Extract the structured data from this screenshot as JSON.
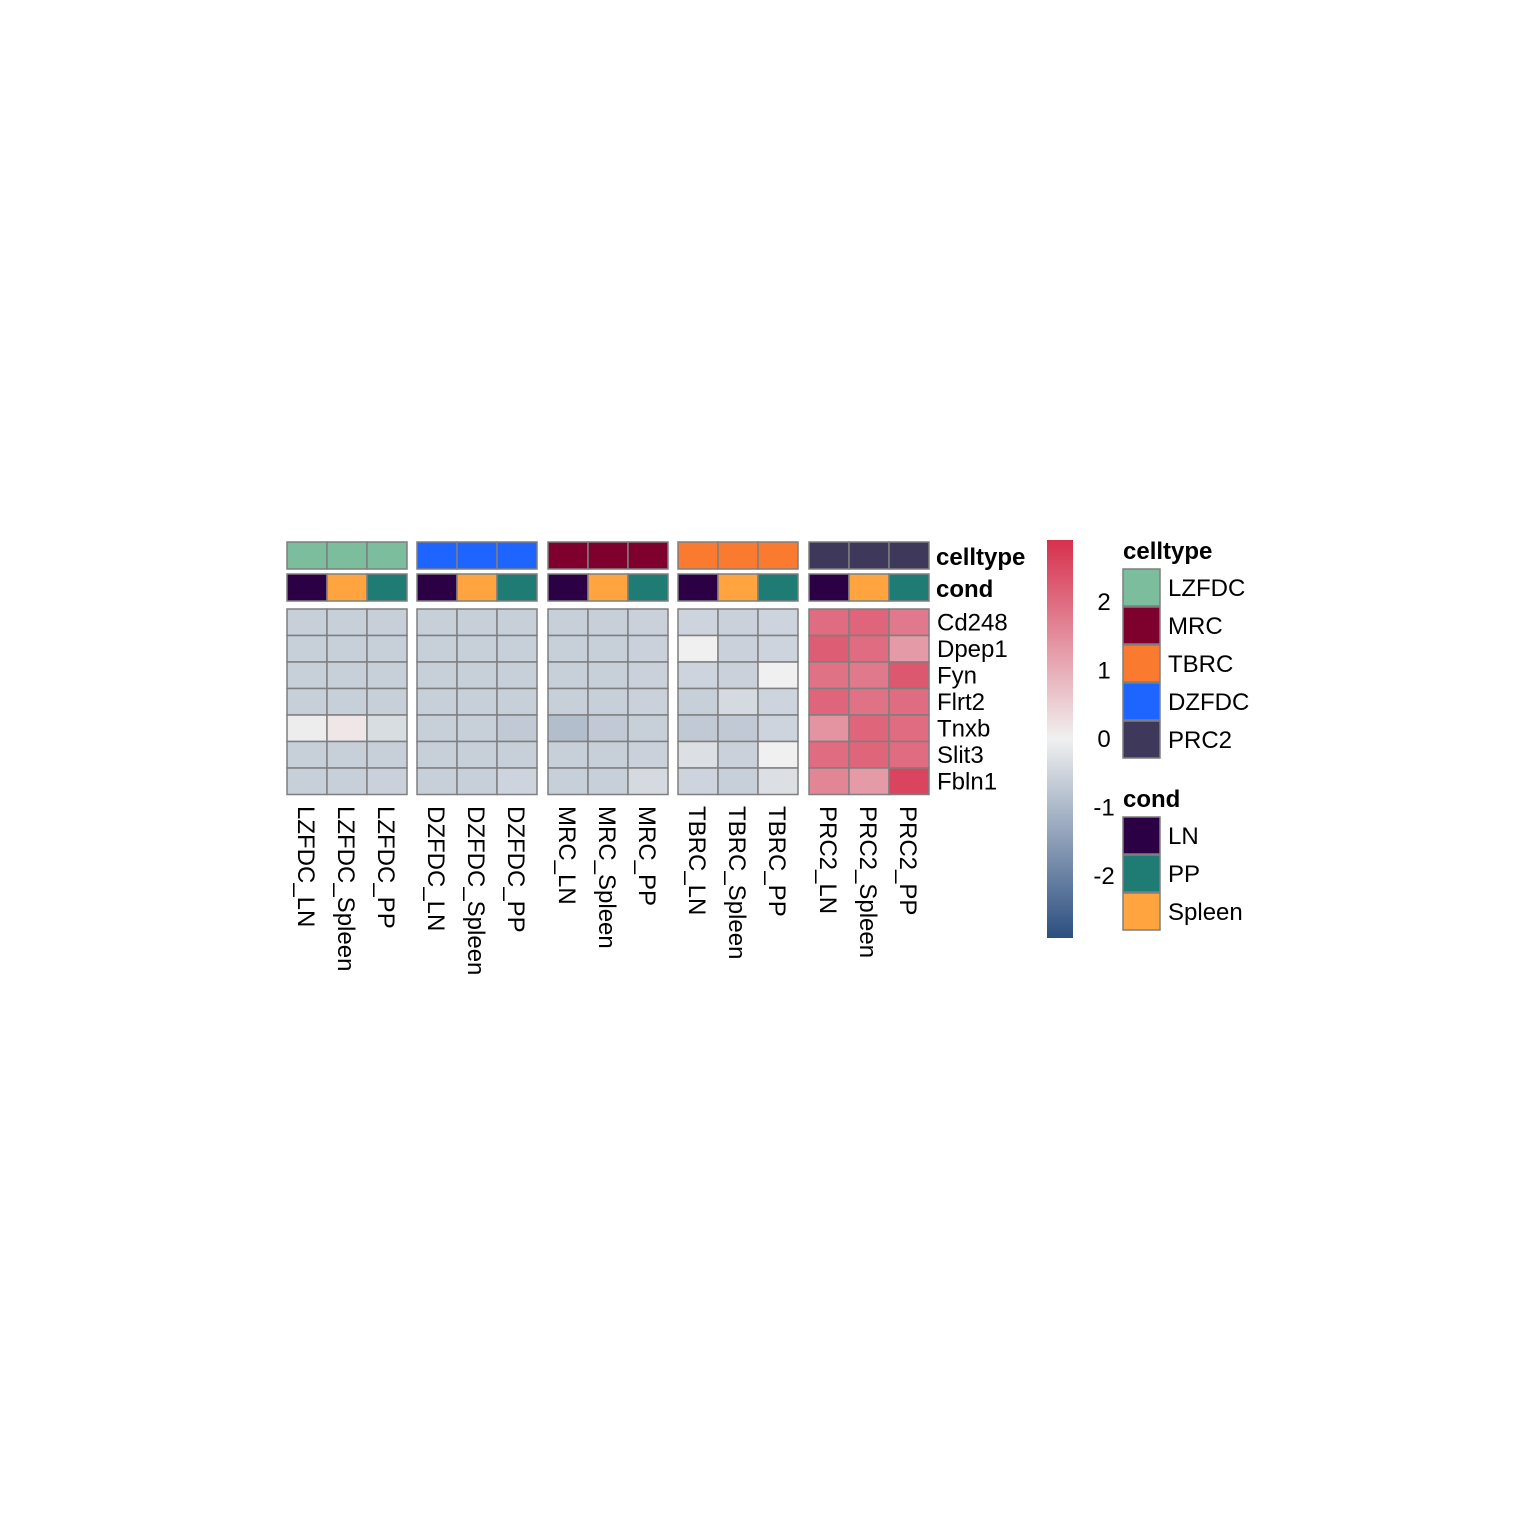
{
  "chart_data": {
    "type": "heatmap",
    "columns": [
      "LZFDC_LN",
      "LZFDC_Spleen",
      "LZFDC_PP",
      "DZFDC_LN",
      "DZFDC_Spleen",
      "DZFDC_PP",
      "MRC_LN",
      "MRC_Spleen",
      "MRC_PP",
      "TBRC_LN",
      "TBRC_Spleen",
      "TBRC_PP",
      "PRC2_LN",
      "PRC2_Spleen",
      "PRC2_PP"
    ],
    "column_groups": [
      {
        "celltype": "LZFDC",
        "columns": [
          "LZFDC_LN",
          "LZFDC_Spleen",
          "LZFDC_PP"
        ]
      },
      {
        "celltype": "DZFDC",
        "columns": [
          "DZFDC_LN",
          "DZFDC_Spleen",
          "DZFDC_PP"
        ]
      },
      {
        "celltype": "MRC",
        "columns": [
          "MRC_LN",
          "MRC_Spleen",
          "MRC_PP"
        ]
      },
      {
        "celltype": "TBRC",
        "columns": [
          "TBRC_LN",
          "TBRC_Spleen",
          "TBRC_PP"
        ]
      },
      {
        "celltype": "PRC2",
        "columns": [
          "PRC2_LN",
          "PRC2_Spleen",
          "PRC2_PP"
        ]
      }
    ],
    "annotations": {
      "celltype": [
        "LZFDC",
        "LZFDC",
        "LZFDC",
        "DZFDC",
        "DZFDC",
        "DZFDC",
        "MRC",
        "MRC",
        "MRC",
        "TBRC",
        "TBRC",
        "TBRC",
        "PRC2",
        "PRC2",
        "PRC2"
      ],
      "cond": [
        "LN",
        "Spleen",
        "PP",
        "LN",
        "Spleen",
        "PP",
        "LN",
        "Spleen",
        "PP",
        "LN",
        "Spleen",
        "PP",
        "LN",
        "Spleen",
        "PP"
      ]
    },
    "annotation_labels": [
      "celltype",
      "cond"
    ],
    "rows": [
      "Cd248",
      "Dpep1",
      "Fyn",
      "Flrt2",
      "Tnxb",
      "Slit3",
      "Fbln1"
    ],
    "values": [
      [
        -0.6,
        -0.6,
        -0.6,
        -0.6,
        -0.6,
        -0.6,
        -0.6,
        -0.6,
        -0.55,
        -0.5,
        -0.55,
        -0.5,
        2.0,
        2.1,
        1.8
      ],
      [
        -0.6,
        -0.6,
        -0.6,
        -0.6,
        -0.6,
        -0.6,
        -0.6,
        -0.6,
        -0.55,
        0.0,
        -0.55,
        -0.5,
        2.2,
        2.0,
        1.3
      ],
      [
        -0.6,
        -0.6,
        -0.6,
        -0.6,
        -0.6,
        -0.6,
        -0.6,
        -0.6,
        -0.55,
        -0.5,
        -0.55,
        0.0,
        1.9,
        1.8,
        2.3
      ],
      [
        -0.6,
        -0.6,
        -0.6,
        -0.6,
        -0.6,
        -0.6,
        -0.6,
        -0.6,
        -0.55,
        -0.6,
        -0.4,
        -0.5,
        2.1,
        1.9,
        2.0
      ],
      [
        -0.05,
        0.15,
        -0.35,
        -0.6,
        -0.6,
        -0.7,
        -0.9,
        -0.7,
        -0.6,
        -0.7,
        -0.7,
        -0.5,
        1.4,
        2.1,
        2.0
      ],
      [
        -0.6,
        -0.6,
        -0.6,
        -0.6,
        -0.6,
        -0.6,
        -0.6,
        -0.6,
        -0.55,
        -0.3,
        -0.55,
        0.0,
        2.0,
        2.1,
        2.0
      ],
      [
        -0.6,
        -0.6,
        -0.55,
        -0.6,
        -0.6,
        -0.5,
        -0.6,
        -0.6,
        -0.4,
        -0.5,
        -0.6,
        -0.3,
        1.6,
        1.3,
        2.6
      ]
    ],
    "color_scale": {
      "low": "#2c4f80",
      "mid": "#f0f0f0",
      "high": "#d7304d",
      "range": [
        -2.9,
        2.9
      ],
      "ticks": [
        2,
        1,
        0,
        -1,
        -2
      ]
    },
    "legend": {
      "celltype": {
        "title": "celltype",
        "items": [
          {
            "label": "LZFDC",
            "color": "#7bbd9d"
          },
          {
            "label": "MRC",
            "color": "#7d002d"
          },
          {
            "label": "TBRC",
            "color": "#fa7b30"
          },
          {
            "label": "DZFDC",
            "color": "#1e64ff"
          },
          {
            "label": "PRC2",
            "color": "#3e385a"
          }
        ]
      },
      "cond": {
        "title": "cond",
        "items": [
          {
            "label": "LN",
            "color": "#2c0045"
          },
          {
            "label": "PP",
            "color": "#1e7c75"
          },
          {
            "label": "Spleen",
            "color": "#ffa43e"
          }
        ]
      }
    },
    "legend_position": "right"
  }
}
